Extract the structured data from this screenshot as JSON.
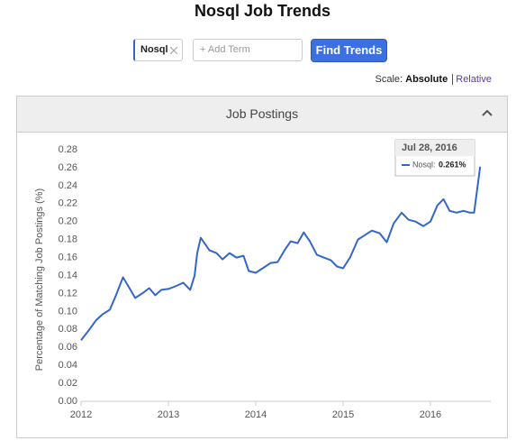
{
  "header": {
    "title": "Nosql Job Trends"
  },
  "controls": {
    "term": "Nosql",
    "add_term_placeholder": "+ Add Term",
    "button": "Find Trends",
    "scale_label": "Scale:",
    "scale_absolute": "Absolute",
    "scale_relative": "Relative"
  },
  "panel": {
    "title": "Job Postings"
  },
  "tooltip": {
    "date": "Jul 28, 2016",
    "label": "Nosql:",
    "value": "0.261%"
  },
  "chart_data": {
    "type": "line",
    "y_label": "Percentage of Matching Job Postings (%)",
    "x": [
      2012.0,
      2012.08,
      2012.17,
      2012.25,
      2012.33,
      2012.4,
      2012.48,
      2012.56,
      2012.62,
      2012.7,
      2012.78,
      2012.85,
      2012.92,
      2013.0,
      2013.08,
      2013.17,
      2013.25,
      2013.3,
      2013.33,
      2013.37,
      2013.47,
      2013.55,
      2013.62,
      2013.7,
      2013.78,
      2013.86,
      2013.92,
      2014.0,
      2014.08,
      2014.17,
      2014.25,
      2014.33,
      2014.4,
      2014.48,
      2014.55,
      2014.62,
      2014.7,
      2014.78,
      2014.86,
      2014.93,
      2015.0,
      2015.08,
      2015.17,
      2015.25,
      2015.33,
      2015.42,
      2015.5,
      2015.58,
      2015.67,
      2015.75,
      2015.83,
      2015.92,
      2016.0,
      2016.08,
      2016.15,
      2016.22,
      2016.3,
      2016.38,
      2016.45,
      2016.5,
      2016.57
    ],
    "series": [
      {
        "name": "Nosql",
        "color": "#3366cc",
        "values": [
          0.068,
          0.078,
          0.09,
          0.097,
          0.102,
          0.118,
          0.138,
          0.125,
          0.115,
          0.12,
          0.126,
          0.118,
          0.124,
          0.125,
          0.128,
          0.132,
          0.124,
          0.14,
          0.165,
          0.182,
          0.168,
          0.165,
          0.158,
          0.165,
          0.16,
          0.162,
          0.145,
          0.143,
          0.148,
          0.154,
          0.155,
          0.168,
          0.178,
          0.176,
          0.188,
          0.178,
          0.163,
          0.16,
          0.157,
          0.15,
          0.148,
          0.16,
          0.18,
          0.185,
          0.19,
          0.187,
          0.177,
          0.198,
          0.21,
          0.202,
          0.2,
          0.195,
          0.2,
          0.218,
          0.225,
          0.212,
          0.21,
          0.212,
          0.21,
          0.21,
          0.261
        ]
      }
    ],
    "xlim": [
      2012,
      2016.65
    ],
    "xticks": [
      2012,
      2013,
      2014,
      2015,
      2016
    ],
    "ylim": [
      0,
      0.28
    ],
    "yticks": [
      {
        "value": 0,
        "label": "0.00"
      },
      {
        "value": 0.02,
        "label": "0.02"
      },
      {
        "value": 0.04,
        "label": "0.04"
      },
      {
        "value": 0.06,
        "label": "0.06"
      },
      {
        "value": 0.08,
        "label": "0.08"
      },
      {
        "value": 0.1,
        "label": "0.10"
      },
      {
        "value": 0.12,
        "label": "0.12"
      },
      {
        "value": 0.14,
        "label": "0.14"
      },
      {
        "value": 0.16,
        "label": "0.16"
      },
      {
        "value": 0.18,
        "label": "0.18"
      },
      {
        "value": 0.2,
        "label": "0.20"
      },
      {
        "value": 0.22,
        "label": "0.22"
      },
      {
        "value": 0.24,
        "label": "0.24"
      },
      {
        "value": 0.26,
        "label": "0.26"
      },
      {
        "value": 0.28,
        "label": "0.28"
      }
    ],
    "grid": false
  }
}
